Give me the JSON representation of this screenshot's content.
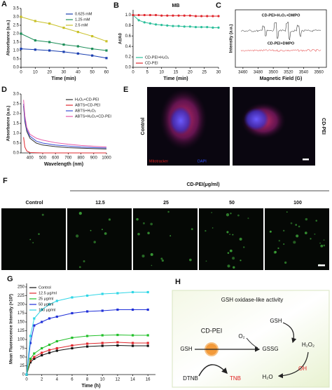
{
  "chart_data": [
    {
      "type": "line",
      "panel_label": "A",
      "x_label": "Time (min)",
      "y_label": "Absorbance (a.u.)",
      "x": [
        0,
        10,
        20,
        30,
        40,
        50,
        60
      ],
      "xlim": [
        0,
        60
      ],
      "xticks": [
        0,
        10,
        20,
        30,
        40,
        50,
        60
      ],
      "ylim": [
        0,
        3.5
      ],
      "yticks": [
        {
          "value": 0,
          "label": "0.0"
        },
        {
          "value": 0.5,
          "label": "0.5"
        },
        {
          "value": 1,
          "label": "1.0"
        },
        {
          "value": 1.5,
          "label": "1.5"
        },
        {
          "value": 2,
          "label": "2.0"
        },
        {
          "value": 2.5,
          "label": "2.5"
        },
        {
          "value": 3,
          "label": "3.0"
        },
        {
          "value": 3.5,
          "label": "3.5"
        }
      ],
      "legend": "upper right",
      "markers": "square",
      "series": [
        {
          "name": "0.625 mM",
          "color": "#1a3fb0",
          "values": [
            1.1,
            1.05,
            1.0,
            0.92,
            0.82,
            0.7,
            0.55
          ]
        },
        {
          "name": "1.25 mM",
          "color": "#1e8f5a",
          "values": [
            2.0,
            1.6,
            1.5,
            1.35,
            1.25,
            1.1,
            1.0
          ]
        },
        {
          "name": "2.5 mM",
          "color": "#c9c22a",
          "values": [
            3.0,
            2.75,
            2.6,
            2.35,
            2.1,
            1.85,
            1.55
          ]
        }
      ]
    },
    {
      "type": "line",
      "panel_label": "B",
      "title": "MB",
      "x_label": "Time (min)",
      "y_label": "At/A0",
      "x": [
        0,
        2,
        4,
        6,
        8,
        10,
        12,
        14,
        16,
        18,
        20,
        22,
        24,
        26,
        28,
        30
      ],
      "xlim": [
        0,
        30
      ],
      "xticks": [
        0,
        5,
        10,
        15,
        20,
        25,
        30
      ],
      "ylim": [
        0,
        1.1
      ],
      "yticks": [
        {
          "value": 0,
          "label": "0.0"
        },
        {
          "value": 0.2,
          "label": "0.2"
        },
        {
          "value": 0.4,
          "label": "0.4"
        },
        {
          "value": 0.6,
          "label": "0.6"
        },
        {
          "value": 0.8,
          "label": "0.8"
        },
        {
          "value": 1,
          "label": "1.0"
        }
      ],
      "legend": "lower left",
      "markers": "circle",
      "series": [
        {
          "name": "CD-PEI+H₂O₂",
          "color": "#2bbf9a",
          "values": [
            1.0,
            0.9,
            0.86,
            0.84,
            0.82,
            0.81,
            0.8,
            0.79,
            0.79,
            0.78,
            0.78,
            0.77,
            0.77,
            0.77,
            0.76,
            0.76
          ]
        },
        {
          "name": "CD-PEI",
          "color": "#e0282e",
          "values": [
            1.0,
            1.0,
            1.0,
            1.0,
            1.0,
            0.99,
            0.99,
            0.99,
            0.99,
            0.99,
            0.99,
            0.98,
            0.98,
            0.98,
            0.98,
            0.98
          ]
        }
      ]
    },
    {
      "type": "esr",
      "panel_label": "C",
      "x_label": "Magnetic Field (G)",
      "y_label": "Intensity (a.u.)",
      "xlim": [
        3450,
        3570
      ],
      "xticks": [
        3460,
        3480,
        3500,
        3520,
        3540,
        3560
      ],
      "annotations": [
        "CD-PEI+H₂O₂+DMPO",
        "CD-PEI+DMPO"
      ]
    },
    {
      "type": "line",
      "panel_label": "D",
      "x_label": "Wavelength (nm)",
      "y_label": "Absorbance (a.u.)",
      "x": [
        350,
        360,
        375,
        400,
        450,
        500,
        600,
        700,
        800,
        900,
        1000
      ],
      "xlim": [
        330,
        1000
      ],
      "xticks": [
        400,
        500,
        600,
        700,
        800,
        900,
        1000
      ],
      "ylim": [
        0,
        3
      ],
      "yticks": [
        {
          "value": 0,
          "label": "0.0"
        },
        {
          "value": 0.5,
          "label": "0.5"
        },
        {
          "value": 1,
          "label": "1.0"
        },
        {
          "value": 1.5,
          "label": "1.5"
        },
        {
          "value": 2,
          "label": "2.0"
        },
        {
          "value": 2.5,
          "label": "2.5"
        },
        {
          "value": 3,
          "label": "3.0"
        }
      ],
      "legend": "upper right",
      "series": [
        {
          "name": "H₂O₂+CD-PEI",
          "color": "#333333",
          "values": [
            2.4,
            1.6,
            1.1,
            0.75,
            0.5,
            0.4,
            0.32,
            0.27,
            0.24,
            0.22,
            0.2
          ]
        },
        {
          "name": "ABTS+CD-PEI",
          "color": "#e0282e",
          "values": [
            0.8,
            0.3,
            0.1,
            0.02,
            0.01,
            0,
            0,
            0,
            0,
            0,
            0
          ]
        },
        {
          "name": "ABTS+H₂O₂",
          "color": "#3b4fd6",
          "values": [
            2.5,
            1.7,
            1.2,
            0.85,
            0.6,
            0.5,
            0.4,
            0.35,
            0.3,
            0.27,
            0.25
          ]
        },
        {
          "name": "ABTS+H₂O₂+CD-PEI",
          "color": "#e55aa8",
          "values": [
            2.7,
            1.9,
            1.3,
            0.95,
            0.75,
            0.65,
            0.52,
            0.44,
            0.38,
            0.34,
            0.3
          ]
        }
      ]
    },
    {
      "type": "line",
      "panel_label": "G",
      "x_label": "Time (h)",
      "y_label": "Mean Fluorescence Intensity (×10³)",
      "x": [
        0,
        0.5,
        1,
        2,
        3,
        4,
        6,
        8,
        10,
        12,
        14,
        16
      ],
      "xlim": [
        0,
        17
      ],
      "xticks": [
        0,
        2,
        4,
        6,
        8,
        10,
        12,
        14,
        16
      ],
      "ylim": [
        0,
        260
      ],
      "yticks": [
        0,
        25,
        50,
        75,
        100,
        125,
        150,
        175,
        200,
        225,
        250
      ],
      "legend": "upper left",
      "markers": "square",
      "series": [
        {
          "name": "Control",
          "color": "#111111",
          "values": [
            0,
            35,
            45,
            55,
            62,
            68,
            75,
            80,
            82,
            83,
            82,
            82
          ]
        },
        {
          "name": "12.5 μg/ml",
          "color": "#e0282e",
          "values": [
            0,
            40,
            50,
            62,
            70,
            75,
            83,
            88,
            90,
            92,
            90,
            90
          ]
        },
        {
          "name": "25 μg/ml",
          "color": "#22c02a",
          "values": [
            0,
            45,
            60,
            75,
            85,
            95,
            105,
            110,
            112,
            113,
            112,
            112
          ]
        },
        {
          "name": "50 μg/ml",
          "color": "#2030d8",
          "values": [
            0,
            90,
            140,
            150,
            160,
            165,
            175,
            180,
            182,
            185,
            185,
            185
          ]
        },
        {
          "name": "100 μg/ml",
          "color": "#2fd6e6",
          "values": [
            0,
            110,
            160,
            185,
            200,
            210,
            220,
            225,
            230,
            232,
            235,
            235
          ]
        }
      ]
    }
  ],
  "panel_e": {
    "label": "E",
    "rows": [
      "Control",
      "CD-PEI"
    ],
    "stains": [
      "Mitotracker",
      "DAPI"
    ]
  },
  "panel_f": {
    "label": "F",
    "header": "CD-PEI(μg/ml)",
    "columns": [
      "Control",
      "12.5",
      "25",
      "50",
      "100"
    ]
  },
  "panel_h": {
    "label": "H",
    "title": "GSH oxidase-like activity",
    "catalyst": "CD-PEI",
    "substrate": "GSH",
    "product": "GSSG",
    "oxygen": "O₂",
    "gsh2": "GSH",
    "peroxide": "H₂O₂",
    "water": "H₂O",
    "radical": "OH",
    "probe": "DTNB",
    "probe_product": "TNB"
  }
}
